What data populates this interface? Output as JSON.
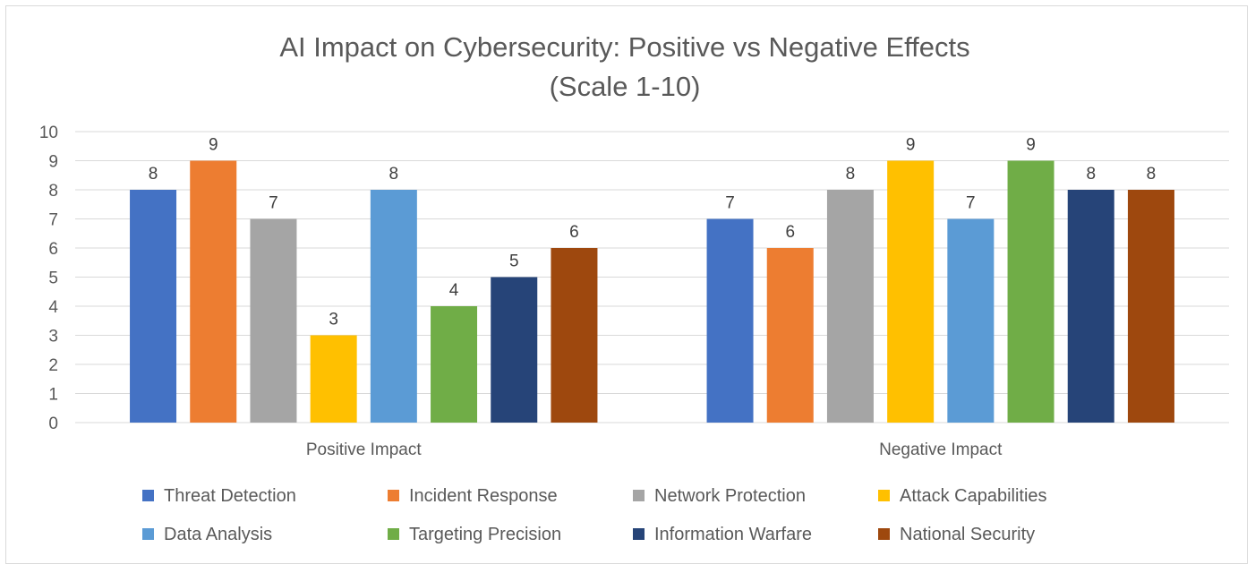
{
  "chart_data": {
    "type": "bar",
    "title_line1": "AI Impact on Cybersecurity: Positive vs Negative Effects",
    "title_line2": "(Scale 1-10)",
    "categories": [
      "Positive Impact",
      "Negative Impact"
    ],
    "ylim": [
      0,
      10
    ],
    "yticks": [
      "0",
      "1",
      "2",
      "3",
      "4",
      "5",
      "6",
      "7",
      "8",
      "9",
      "10"
    ],
    "grid": true,
    "legend_position": "bottom",
    "series": [
      {
        "name": "Threat Detection",
        "color": "#4472c4",
        "values": [
          8,
          7
        ]
      },
      {
        "name": "Incident Response",
        "color": "#ed7d31",
        "values": [
          9,
          6
        ]
      },
      {
        "name": "Network Protection",
        "color": "#a5a5a5",
        "values": [
          7,
          8
        ]
      },
      {
        "name": "Attack Capabilities",
        "color": "#ffc000",
        "values": [
          3,
          9
        ]
      },
      {
        "name": "Data Analysis",
        "color": "#5b9bd5",
        "values": [
          8,
          7
        ]
      },
      {
        "name": "Targeting Precision",
        "color": "#70ad47",
        "values": [
          4,
          9
        ]
      },
      {
        "name": "Information Warfare",
        "color": "#264478",
        "values": [
          5,
          8
        ]
      },
      {
        "name": "National Security",
        "color": "#9e480e",
        "values": [
          6,
          8
        ]
      }
    ]
  }
}
